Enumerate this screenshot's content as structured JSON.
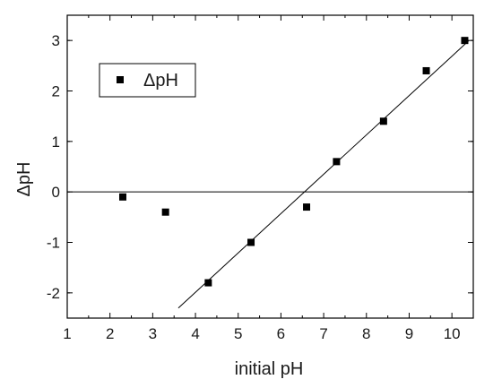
{
  "chart_data": {
    "type": "scatter",
    "xlabel": "initial pH",
    "ylabel": "ΔpH",
    "xlim": [
      1,
      10.5
    ],
    "ylim": [
      -2.5,
      3.5
    ],
    "xticks": [
      1,
      2,
      3,
      4,
      5,
      6,
      7,
      8,
      9,
      10
    ],
    "yticks": [
      -2,
      -1,
      0,
      1,
      2,
      3
    ],
    "series": [
      {
        "name": "ΔpH",
        "marker": "square",
        "color": "#000000",
        "x": [
          2.3,
          3.3,
          4.3,
          5.3,
          6.6,
          7.3,
          8.4,
          9.4,
          10.3
        ],
        "y": [
          -0.1,
          -0.4,
          -1.8,
          -1.0,
          -0.3,
          0.6,
          1.4,
          2.4,
          3.0
        ]
      }
    ],
    "lines": [
      {
        "type": "zero-reference",
        "x": [
          1,
          10.5
        ],
        "y": [
          0,
          0
        ],
        "color": "#000000"
      },
      {
        "type": "linear-fit",
        "x": [
          3.6,
          10.4
        ],
        "y": [
          -2.3,
          3.0
        ],
        "color": "#000000"
      }
    ],
    "legend": {
      "placement": "top-left",
      "entries": [
        "ΔpH"
      ]
    },
    "grid": false
  }
}
